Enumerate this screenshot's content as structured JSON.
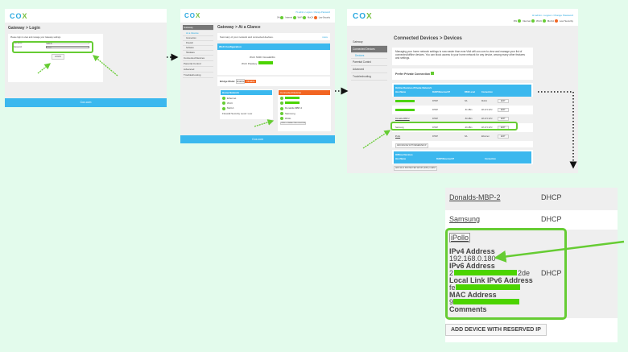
{
  "brand": {
    "logo": "COX",
    "footer": "Cox.com"
  },
  "login": {
    "title": "Gateway > Login",
    "intro": "Please login to view and manage your Gateway settings.",
    "username_label": "Username",
    "username_value": "admin",
    "password_label": "Password",
    "password_value": "•••••••",
    "login_button": "LOGIN"
  },
  "glance": {
    "title": "Gateway > At a Glance",
    "header_links": "Hi admin • Logout • Change Password",
    "status": [
      "0%",
      "Internet",
      "Wi-Fi",
      "MoCA",
      "Low Security"
    ],
    "sidebar": [
      "Gateway",
      "At a Glance",
      "Connection",
      "Firewall",
      "Software",
      "Hardware",
      "Connected Devices",
      "Parental Control",
      "Advanced",
      "Troubleshooting"
    ],
    "summary": "Summary of your network and connected devices.",
    "more": "more",
    "wifi_title": "Wi-Fi Configuration",
    "ssid_label": "Wi-Fi SSID:",
    "ssid_value": "Donald24G",
    "pass_label": "Wi-Fi Passkey:",
    "bridge_label": "Bridge Mode:",
    "bridge_off": "Enable",
    "bridge_on": "Disable",
    "gw_title": "Home Network",
    "gw_items": [
      "Ethernet",
      "Wi-Fi",
      "MoCA"
    ],
    "security": "Firewall Security Level: Low",
    "cd_title": "Connected Devices",
    "cd_items": [
      "",
      "",
      "Donalds-MBP-2",
      "Samsung",
      "iPollo"
    ],
    "view_button": "VIEW CONNECTED DEVICES"
  },
  "devices": {
    "title": "Connected Devices > Devices",
    "sidebar": [
      "Gateway",
      "Connected Devices",
      "Devices",
      "Parental Control",
      "Advanced",
      "Troubleshooting"
    ],
    "intro": "Managing your home network settings is now easier than ever.Visit wifi.cox.com to view and manage your list of connected/offline devices. You can block access to your home network for any device, among many other features and settings.",
    "prefer": "Prefer Private Connection",
    "online_title": "Online Devices-Private Network",
    "columns": [
      "Host Name",
      "DHCP/Reserved IP",
      "RSSI Level",
      "Connection",
      ""
    ],
    "rows": [
      {
        "name": "",
        "ip": "DHCP",
        "rssi": "NA",
        "conn": "MoCA",
        "btn": "EDIT"
      },
      {
        "name": "",
        "ip": "DHCP",
        "rssi": "-61 dBm",
        "conn": "Wi-Fi 5 GHz",
        "btn": "EDIT"
      },
      {
        "name": "Donalds-MBP-2",
        "ip": "DHCP",
        "rssi": "-50 dBm",
        "conn": "Wi-Fi 5 GHz",
        "btn": "EDIT"
      },
      {
        "name": "Samsung",
        "ip": "DHCP",
        "rssi": "-46 dBm",
        "conn": "Wi-Fi 5 GHz",
        "btn": "EDIT"
      },
      {
        "name": "iPollo",
        "ip": "DHCP",
        "rssi": "NA",
        "conn": "Ethernet",
        "btn": "EDIT"
      }
    ],
    "add_reserved": "ADD DEVICE WITH RESERVED IP",
    "offline_title": "Offline Devices",
    "offline_columns": [
      "Host Name",
      "DHCP/Reserved IP",
      "Connection"
    ],
    "add_wps": "ADD WI-FI PROTECTED SETUP (WPS) CLIENT"
  },
  "detail": {
    "rows": [
      {
        "name": "Donalds-MBP-2",
        "ip": "DHCP"
      },
      {
        "name": "Samsung",
        "ip": "DHCP"
      }
    ],
    "device": "iPollo",
    "ipv4_label": "IPv4 Address",
    "ipv4": "192.168.0.180",
    "ipv6_label": "IPv6 Address",
    "ipv6_start": "2",
    "ipv6_end": "2de",
    "ll_label": "Local Link IPv6 Address",
    "ll_start": "fe",
    "mac_label": "MAC Address",
    "mac_start": "9",
    "comments": "Comments",
    "ip": "DHCP",
    "add_reserved": "ADD DEVICE WITH RESERVED IP"
  },
  "colors": {
    "accent": "#3bb8ee",
    "highlight": "#66cc33",
    "redact": "#4cd400",
    "orange": "#f26522"
  }
}
